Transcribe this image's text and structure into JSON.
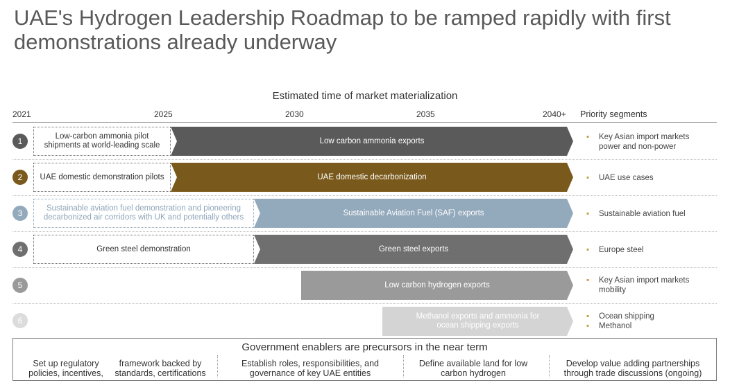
{
  "title": "UAE's Hydrogen Leadership Roadmap to be ramped rapidly with first demonstrations already underway",
  "subtitle": "Estimated time of market materialization",
  "years": [
    "2021",
    "2025",
    "2030",
    "2035",
    "2040+"
  ],
  "priority_header": "Priority segments",
  "rows": [
    {
      "num": "1",
      "pilot": "Low-carbon ammonia pilot shipments at world-leading scale",
      "bar": "Low carbon ammonia exports",
      "priority": [
        "Key Asian import markets power and non-power"
      ],
      "color": "#5a5a5a"
    },
    {
      "num": "2",
      "pilot": "UAE domestic demonstration pilots",
      "bar": "UAE domestic decarbonization",
      "priority": [
        "UAE use cases"
      ],
      "color": "#7a5a1c"
    },
    {
      "num": "3",
      "pilot": "Sustainable aviation fuel demonstration and pioneering decarbonized air corridors with UK and potentially others",
      "bar": "Sustainable Aviation Fuel (SAF) exports",
      "priority": [
        "Sustainable aviation fuel"
      ],
      "color": "#93a9bc"
    },
    {
      "num": "4",
      "pilot": "Green steel demonstration",
      "bar": "Green steel exports",
      "priority": [
        "Europe steel"
      ],
      "color": "#6f6f6f"
    },
    {
      "num": "5",
      "pilot": "",
      "bar": "Low carbon hydrogen exports",
      "priority": [
        "Key Asian import markets mobility"
      ],
      "color": "#9a9a9a"
    },
    {
      "num": "6",
      "pilot": "",
      "bar": "Methanol exports and ammonia for ocean shipping exports",
      "priority": [
        "Ocean shipping",
        "Methanol"
      ],
      "color": "#d4d4d4"
    }
  ],
  "gov": {
    "title": "Government enablers are precursors in the near term",
    "items": [
      "Set up regulatory policies, incentives,",
      "framework backed by standards, certifications",
      "Establish roles, responsibilities, and governance of key UAE entities",
      "Define available land for low carbon hydrogen",
      "Develop value adding partnerships through trade discussions (ongoing)"
    ]
  }
}
